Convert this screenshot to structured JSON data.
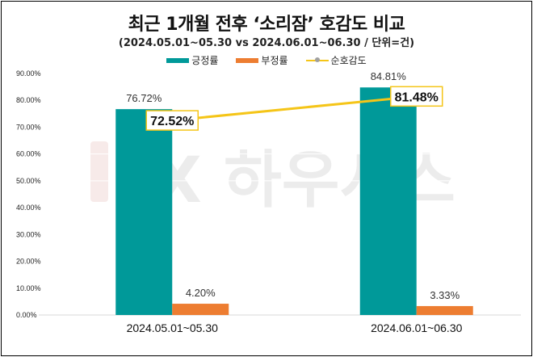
{
  "title": "최근 1개월 전후 ‘소리잠’ 호감도 비교",
  "subtitle": "(2024.05.01~05.30 vs 2024.06.01~06.30 / 단위=건)",
  "watermark": "LX 하우시스",
  "colors": {
    "positive": "#009999",
    "negative": "#ED7D31",
    "net": "#F5C518",
    "marker": "#A0A0A0"
  },
  "chart_data": {
    "type": "bar",
    "title": "최근 1개월 전후 ‘소리잠’ 호감도 비교",
    "categories": [
      "2024.05.01~05.30",
      "2024.06.01~06.30"
    ],
    "series": [
      {
        "name": "긍정률",
        "kind": "bar",
        "values": [
          76.72,
          84.81
        ],
        "labels": [
          "76.72%",
          "84.81%"
        ]
      },
      {
        "name": "부정률",
        "kind": "bar",
        "values": [
          4.2,
          3.33
        ],
        "labels": [
          "4.20%",
          "3.33%"
        ]
      },
      {
        "name": "순호감도",
        "kind": "line",
        "values": [
          72.52,
          81.48
        ],
        "labels": [
          "72.52%",
          "81.48%"
        ]
      }
    ],
    "ylim": [
      0,
      90
    ],
    "yticks": [
      "0.00%",
      "10.00%",
      "20.00%",
      "30.00%",
      "40.00%",
      "50.00%",
      "60.00%",
      "70.00%",
      "80.00%",
      "90.00%"
    ],
    "legend_position": "top",
    "grid": true
  }
}
